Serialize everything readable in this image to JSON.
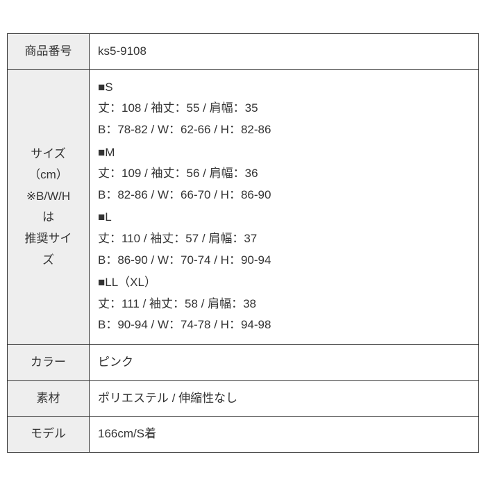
{
  "rows": {
    "productNumber": {
      "label": "商品番号",
      "value": "ks5-9108"
    },
    "size": {
      "label": "サイズ\n（cm）\n※B/W/Hは\n推奨サイズ",
      "sizes": [
        {
          "name": "■S",
          "line1": "丈：108 / 袖丈：55 / 肩幅：35",
          "line2": "B：78-82 / W：62-66 / H：82-86"
        },
        {
          "name": "■M",
          "line1": "丈：109 / 袖丈：56 / 肩幅：36",
          "line2": "B：82-86 / W：66-70 / H：86-90"
        },
        {
          "name": "■L",
          "line1": "丈：110 / 袖丈：57 / 肩幅：37",
          "line2": "B：86-90 / W：70-74 / H：90-94"
        },
        {
          "name": "■LL（XL）",
          "line1": "丈：111 / 袖丈：58 / 肩幅：38",
          "line2": "B：90-94 / W：74-78 / H：94-98"
        }
      ]
    },
    "color": {
      "label": "カラー",
      "value": "ピンク"
    },
    "material": {
      "label": "素材",
      "value": "ポリエステル / 伸縮性なし"
    },
    "model": {
      "label": "モデル",
      "value": "166cm/S着"
    }
  },
  "sizeLabelLines": [
    "サイズ",
    "（cm）",
    "※B/W/H",
    "は",
    "推奨サイ",
    "ズ"
  ]
}
